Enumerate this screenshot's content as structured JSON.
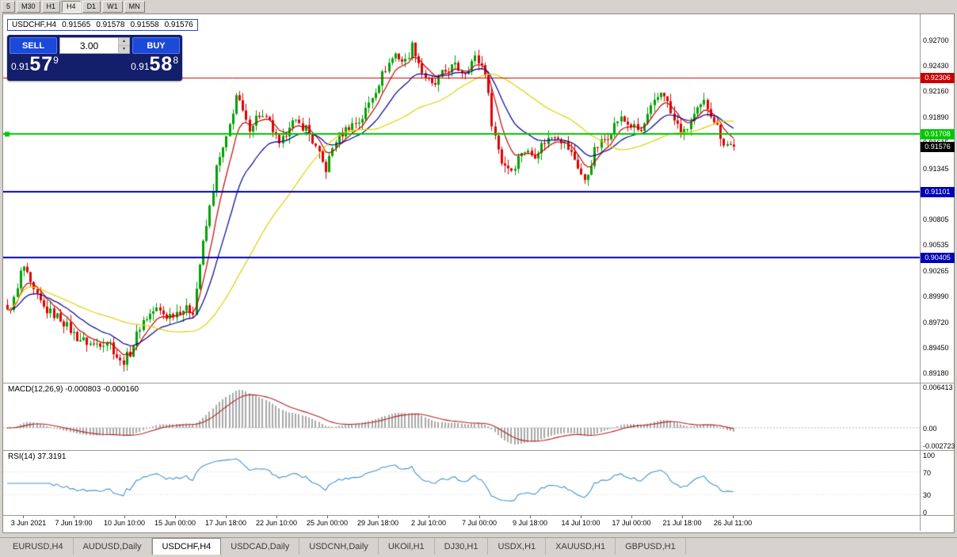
{
  "toolbar": {
    "timeframes": [
      "5",
      "M30",
      "H1",
      "H4",
      "D1",
      "W1",
      "MN"
    ],
    "active": "H4"
  },
  "chart_header": {
    "symbol_period": "USDCHF,H4",
    "open": "0.91565",
    "high": "0.91578",
    "low": "0.91558",
    "close": "0.91576"
  },
  "trade_panel": {
    "sell_label": "SELL",
    "buy_label": "BUY",
    "volume": "3.00",
    "sell_price": {
      "small": "0.91",
      "big": "57",
      "sup": "9"
    },
    "buy_price": {
      "small": "0.91",
      "big": "58",
      "sup": "8"
    },
    "colors": {
      "panel_bg": "#131f6b",
      "button_bg": "#1b49d8"
    }
  },
  "icons": {
    "spinner_up": "▴",
    "spinner_down": "▾"
  },
  "price_axis": {
    "labels": [
      "0.92700",
      "0.92430",
      "0.92160",
      "0.91890",
      "0.91615",
      "0.91345",
      "0.91075",
      "0.90805",
      "0.90535",
      "0.90265",
      "0.89990",
      "0.89720",
      "0.89450",
      "0.89180"
    ]
  },
  "hlines": [
    {
      "price": 0.92306,
      "label": "0.92306",
      "color": "#c80000",
      "width": 1
    },
    {
      "price": 0.91708,
      "label": "0.91708",
      "color": "#00c800",
      "width": 2,
      "marker": true
    },
    {
      "price": 0.91101,
      "label": "0.91101",
      "color": "#0000b4",
      "width": 2
    },
    {
      "price": 0.90405,
      "label": "0.90405",
      "color": "#0000b4",
      "width": 2
    }
  ],
  "current_price": {
    "value": 0.91576,
    "label": "0.91576",
    "bg": "#000000"
  },
  "time_axis": {
    "labels": [
      "3 Jun 2021",
      "7 Jun 19:00",
      "10 Jun 10:00",
      "15 Jun 00:00",
      "17 Jun 18:00",
      "22 Jun 10:00",
      "25 Jun 00:00",
      "29 Jun 18:00",
      "2 Jul 10:00",
      "7 Jul 00:00",
      "9 Jul 18:00",
      "14 Jul 10:00",
      "17 Jul 00:00",
      "21 Jul 18:00",
      "26 Jul 11:00"
    ]
  },
  "indicators": {
    "macd": {
      "label": "MACD(12,26,9) -0.000803 -0.000160",
      "axis_max": "0.006413",
      "axis_zero": "0.00",
      "axis_min": "-0.002723"
    },
    "rsi": {
      "label": "RSI(14) 37.3191",
      "axis": [
        "100",
        "70",
        "30",
        "0"
      ]
    }
  },
  "tabs": [
    {
      "label": "EURUSD,H4"
    },
    {
      "label": "AUDUSD,Daily"
    },
    {
      "label": "USDCHF,H4",
      "active": true
    },
    {
      "label": "USDCAD,Daily"
    },
    {
      "label": "USDCNH,Daily"
    },
    {
      "label": "UKOil,H1"
    },
    {
      "label": "DJ30,H1"
    },
    {
      "label": "USDX,H1"
    },
    {
      "label": "XAUUSD,H1"
    },
    {
      "label": "GBPUSD,H1"
    }
  ],
  "chart_data": {
    "type": "candlestick",
    "symbol": "USDCHF",
    "timeframe": "H4",
    "ylim": [
      0.8918,
      0.927
    ],
    "n_candles": 220,
    "last_close": 0.91576,
    "up_color": "#00a000",
    "down_color": "#e00000",
    "price_path": [
      [
        0.0,
        0.8982
      ],
      [
        0.012,
        0.9
      ],
      [
        0.021,
        0.9034
      ],
      [
        0.033,
        0.9008
      ],
      [
        0.051,
        0.8986
      ],
      [
        0.073,
        0.8976
      ],
      [
        0.095,
        0.8956
      ],
      [
        0.117,
        0.8948
      ],
      [
        0.139,
        0.8953
      ],
      [
        0.156,
        0.8928
      ],
      [
        0.169,
        0.894
      ],
      [
        0.185,
        0.8972
      ],
      [
        0.204,
        0.8986
      ],
      [
        0.22,
        0.8978
      ],
      [
        0.24,
        0.8986
      ],
      [
        0.256,
        0.8984
      ],
      [
        0.266,
        0.904
      ],
      [
        0.277,
        0.9086
      ],
      [
        0.288,
        0.9136
      ],
      [
        0.302,
        0.9166
      ],
      [
        0.315,
        0.9212
      ],
      [
        0.326,
        0.919
      ],
      [
        0.331,
        0.9176
      ],
      [
        0.346,
        0.9192
      ],
      [
        0.362,
        0.9181
      ],
      [
        0.375,
        0.9156
      ],
      [
        0.389,
        0.9184
      ],
      [
        0.411,
        0.9178
      ],
      [
        0.427,
        0.9152
      ],
      [
        0.438,
        0.9133
      ],
      [
        0.451,
        0.9164
      ],
      [
        0.471,
        0.918
      ],
      [
        0.487,
        0.9186
      ],
      [
        0.504,
        0.9214
      ],
      [
        0.52,
        0.924
      ],
      [
        0.534,
        0.9256
      ],
      [
        0.547,
        0.9246
      ],
      [
        0.558,
        0.9266
      ],
      [
        0.571,
        0.9236
      ],
      [
        0.586,
        0.922
      ],
      [
        0.6,
        0.9236
      ],
      [
        0.615,
        0.9243
      ],
      [
        0.629,
        0.9236
      ],
      [
        0.643,
        0.9252
      ],
      [
        0.657,
        0.924
      ],
      [
        0.667,
        0.9182
      ],
      [
        0.68,
        0.9142
      ],
      [
        0.695,
        0.9133
      ],
      [
        0.709,
        0.9155
      ],
      [
        0.724,
        0.9148
      ],
      [
        0.738,
        0.9162
      ],
      [
        0.755,
        0.9172
      ],
      [
        0.768,
        0.916
      ],
      [
        0.782,
        0.9143
      ],
      [
        0.795,
        0.9119
      ],
      [
        0.809,
        0.9155
      ],
      [
        0.825,
        0.9168
      ],
      [
        0.842,
        0.9188
      ],
      [
        0.858,
        0.918
      ],
      [
        0.872,
        0.9173
      ],
      [
        0.885,
        0.9196
      ],
      [
        0.902,
        0.9219
      ],
      [
        0.916,
        0.9186
      ],
      [
        0.931,
        0.9171
      ],
      [
        0.945,
        0.919
      ],
      [
        0.96,
        0.9205
      ],
      [
        0.973,
        0.9186
      ],
      [
        0.986,
        0.9162
      ],
      [
        1.0,
        0.91576
      ]
    ],
    "moving_averages": [
      {
        "period": 7,
        "method": "ema",
        "color": "#c80000"
      },
      {
        "period": 18,
        "method": "ema",
        "color": "#000096"
      },
      {
        "period": 40,
        "method": "sma",
        "color": "#e0d000"
      }
    ],
    "sub_indicators": {
      "macd": {
        "fast": 12,
        "slow": 26,
        "signal": 9,
        "range": [
          -0.002723,
          0.006413
        ],
        "hist_color": "#a8a8a8",
        "signal_color": "#b22222"
      },
      "rsi": {
        "period": 14,
        "range": [
          0,
          100
        ],
        "color": "#4093d0"
      }
    }
  }
}
